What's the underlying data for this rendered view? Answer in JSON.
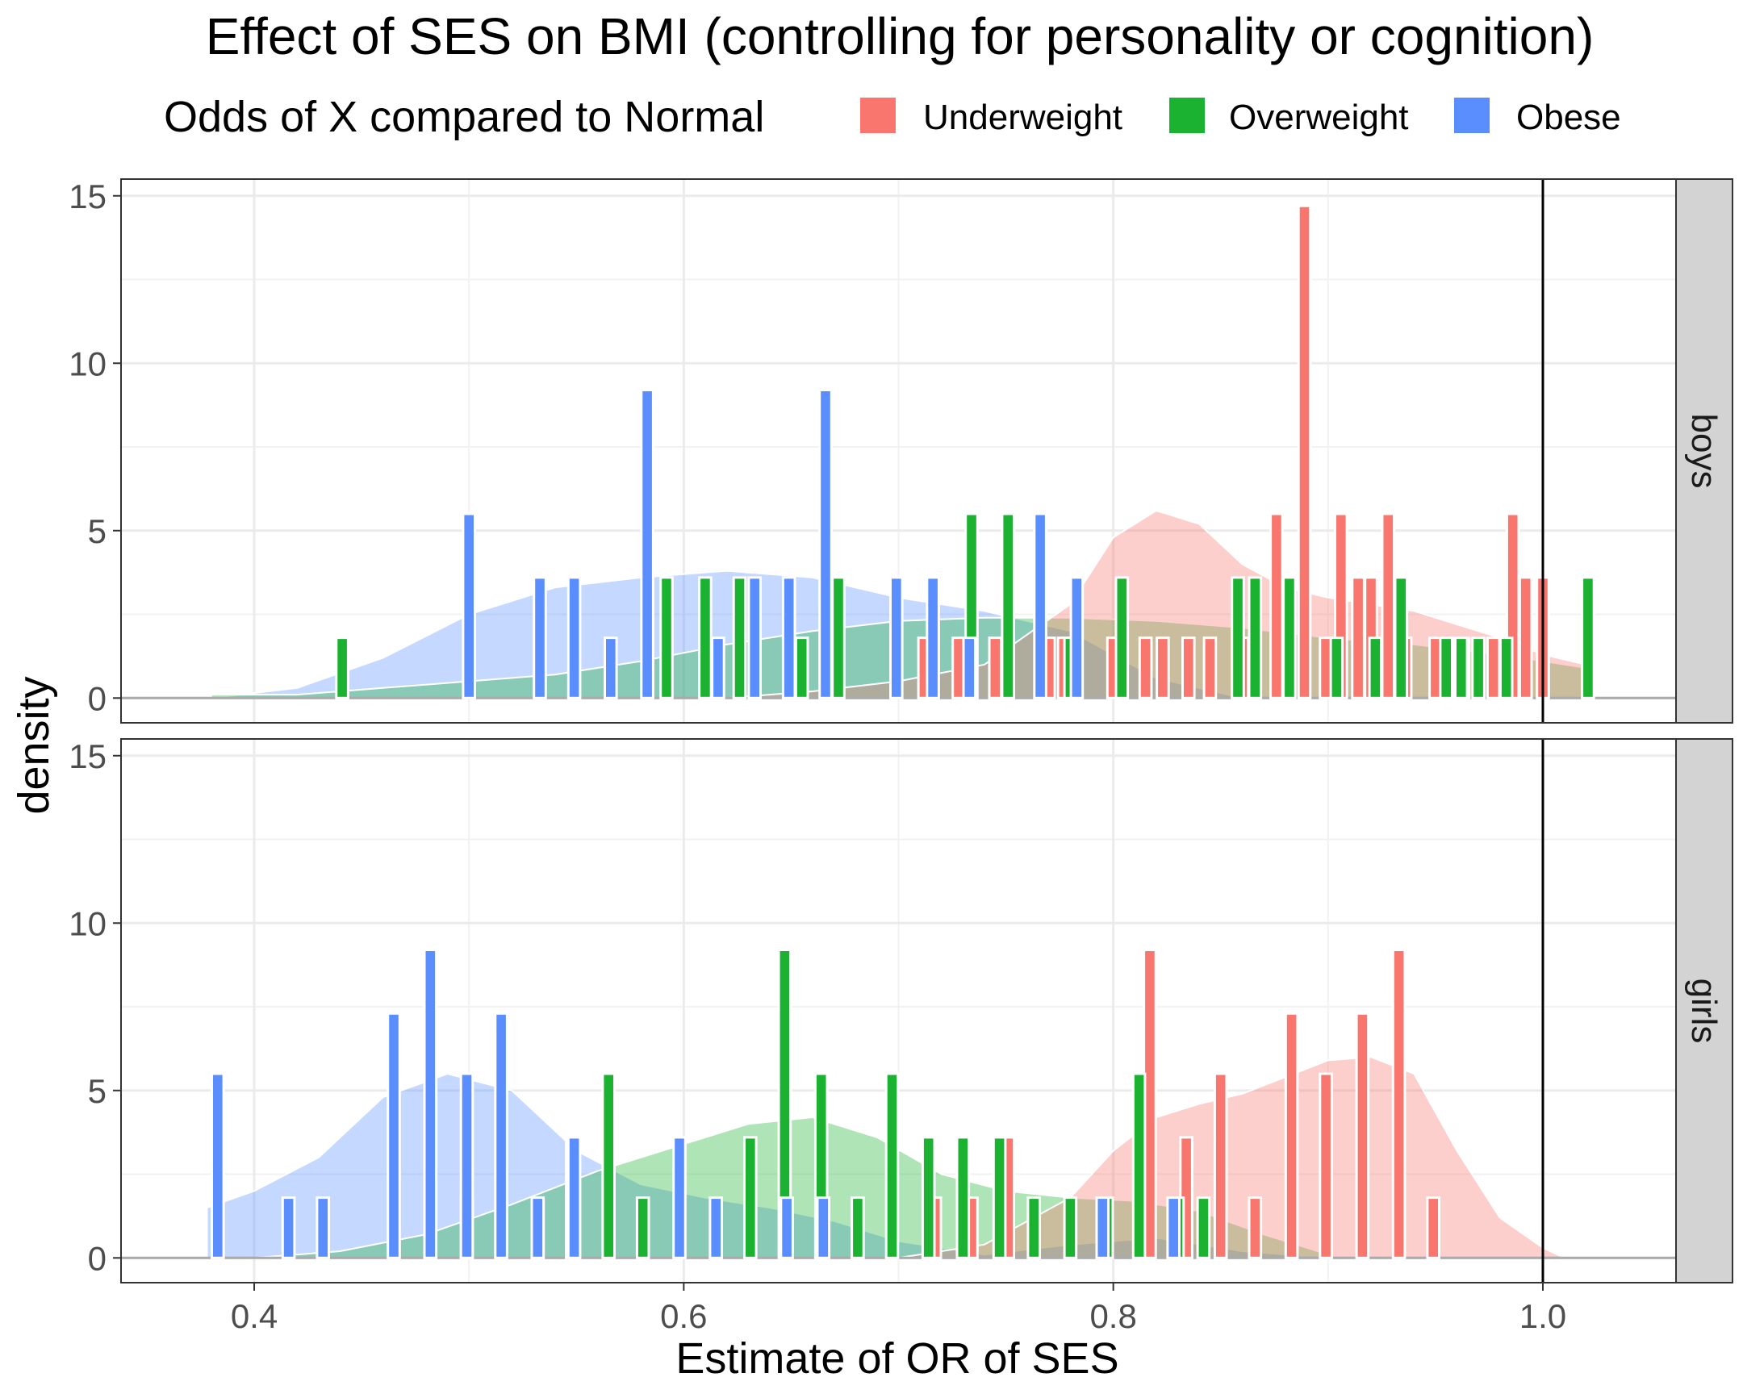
{
  "title": "Effect of SES on BMI (controlling for personality or cognition)",
  "legend": {
    "title": "Odds of X compared to Normal",
    "position": "top",
    "items": [
      {
        "label": "Underweight",
        "color": "#F8766D"
      },
      {
        "label": "Overweight",
        "color": "#1BB131"
      },
      {
        "label": "Obese",
        "color": "#5A8EFF"
      }
    ]
  },
  "chart_data": {
    "type": "bar",
    "xlabel": "Estimate of OR of SES",
    "ylabel": "density",
    "xlim": [
      0.338,
      1.062
    ],
    "ylim": [
      -0.74,
      15.5
    ],
    "x_ticks": [
      "0.4",
      "0.6",
      "0.8",
      "1.0"
    ],
    "x_tick_values": [
      0.4,
      0.6,
      0.8,
      1.0
    ],
    "y_ticks": [
      "0",
      "5",
      "10",
      "15"
    ],
    "y_tick_values": [
      0,
      5,
      10,
      15
    ],
    "reference_line_x": 1.0,
    "grid": true,
    "bin_width": 0.0055,
    "facets": [
      {
        "label": "boys",
        "series": [
          {
            "name": "Underweight",
            "x": [
              0.712,
              0.728,
              0.745,
              0.77,
              0.777,
              0.782,
              0.8,
              0.815,
              0.823,
              0.835,
              0.845,
              0.86,
              0.876,
              0.889,
              0.899,
              0.906,
              0.914,
              0.92,
              0.928,
              0.936,
              0.95,
              0.956,
              0.963,
              0.977,
              0.986,
              0.992,
              1.0
            ],
            "y": [
              1.8,
              1.8,
              1.8,
              1.8,
              1.8,
              1.8,
              1.8,
              1.8,
              1.8,
              1.8,
              1.8,
              1.8,
              5.5,
              14.7,
              1.8,
              5.5,
              3.6,
              3.6,
              5.5,
              1.8,
              1.8,
              1.8,
              1.8,
              1.8,
              5.5,
              3.6,
              3.6
            ]
          },
          {
            "name": "Overweight",
            "x": [
              0.441,
              0.592,
              0.61,
              0.626,
              0.655,
              0.672,
              0.734,
              0.751,
              0.78,
              0.804,
              0.858,
              0.866,
              0.882,
              0.904,
              0.922,
              0.934,
              0.955,
              0.962,
              0.97,
              0.983,
              1.021
            ],
            "y": [
              1.8,
              3.6,
              3.6,
              3.6,
              1.8,
              3.6,
              5.5,
              5.5,
              1.8,
              3.6,
              3.6,
              3.6,
              3.6,
              1.8,
              1.8,
              3.6,
              1.8,
              1.8,
              1.8,
              1.8,
              3.6
            ]
          },
          {
            "name": "Obese",
            "x": [
              0.5,
              0.533,
              0.549,
              0.566,
              0.583,
              0.616,
              0.633,
              0.649,
              0.666,
              0.699,
              0.716,
              0.733,
              0.766,
              0.783
            ],
            "y": [
              5.5,
              3.6,
              3.6,
              1.8,
              9.2,
              1.8,
              3.6,
              3.6,
              9.2,
              3.6,
              3.6,
              1.8,
              5.5,
              3.6
            ]
          }
        ],
        "densities": [
          {
            "name": "Obese",
            "x": [
              0.38,
              0.42,
              0.46,
              0.5,
              0.54,
              0.58,
              0.62,
              0.66,
              0.7,
              0.74,
              0.78,
              0.82,
              0.86
            ],
            "y": [
              0.0,
              0.3,
              1.2,
              2.5,
              3.3,
              3.6,
              3.8,
              3.6,
              3.0,
              2.6,
              2.0,
              0.6,
              0.0
            ]
          },
          {
            "name": "Overweight",
            "x": [
              0.38,
              0.42,
              0.46,
              0.5,
              0.54,
              0.58,
              0.62,
              0.66,
              0.7,
              0.74,
              0.78,
              0.82,
              0.86,
              0.9,
              0.94,
              0.98,
              1.02
            ],
            "y": [
              0.1,
              0.1,
              0.3,
              0.5,
              0.7,
              1.1,
              1.6,
              2.0,
              2.3,
              2.4,
              2.4,
              2.3,
              2.1,
              1.8,
              1.6,
              1.3,
              0.9
            ]
          },
          {
            "name": "Underweight",
            "x": [
              0.62,
              0.66,
              0.7,
              0.74,
              0.78,
              0.8,
              0.82,
              0.84,
              0.86,
              0.88,
              0.9,
              0.92,
              0.94,
              0.96,
              0.98,
              1.0,
              1.02
            ],
            "y": [
              0.0,
              0.2,
              0.5,
              1.0,
              2.8,
              4.8,
              5.6,
              5.2,
              4.0,
              3.3,
              3.0,
              2.8,
              2.6,
              2.2,
              1.8,
              1.3,
              1.0
            ]
          }
        ]
      },
      {
        "label": "girls",
        "series": [
          {
            "name": "Underweight",
            "x": [
              0.717,
              0.734,
              0.751,
              0.817,
              0.834,
              0.85,
              0.866,
              0.883,
              0.899,
              0.916,
              0.933,
              0.949
            ],
            "y": [
              1.8,
              1.8,
              3.6,
              9.2,
              3.6,
              5.5,
              1.8,
              7.3,
              5.5,
              7.3,
              9.2,
              1.8
            ]
          },
          {
            "name": "Overweight",
            "x": [
              0.499,
              0.532,
              0.548,
              0.565,
              0.581,
              0.615,
              0.631,
              0.647,
              0.664,
              0.681,
              0.697,
              0.714,
              0.73,
              0.747,
              0.763,
              0.78,
              0.797,
              0.812,
              0.83,
              0.842
            ],
            "y": [
              1.8,
              1.8,
              3.6,
              5.5,
              1.8,
              1.8,
              3.6,
              9.2,
              5.5,
              1.8,
              5.5,
              3.6,
              3.6,
              3.6,
              1.8,
              1.8,
              1.8,
              5.5,
              1.8,
              1.8
            ]
          },
          {
            "name": "Obese",
            "x": [
              0.383,
              0.416,
              0.432,
              0.465,
              0.482,
              0.499,
              0.515,
              0.532,
              0.549,
              0.598,
              0.615,
              0.648,
              0.665,
              0.795,
              0.828
            ],
            "y": [
              5.5,
              1.8,
              1.8,
              7.3,
              9.2,
              5.5,
              7.3,
              1.8,
              3.6,
              3.6,
              1.8,
              1.8,
              1.8,
              1.8,
              1.8
            ]
          }
        ],
        "densities": [
          {
            "name": "Obese",
            "x": [
              0.378,
              0.4,
              0.43,
              0.46,
              0.49,
              0.52,
              0.55,
              0.58,
              0.61,
              0.64,
              0.67,
              0.7,
              0.74,
              0.78,
              0.82,
              0.86,
              0.9
            ],
            "y": [
              1.5,
              2.0,
              3.0,
              4.8,
              5.5,
              5.0,
              3.2,
              2.2,
              1.8,
              1.5,
              1.1,
              0.5,
              0.1,
              0.4,
              0.6,
              0.2,
              0.0
            ]
          },
          {
            "name": "Overweight",
            "x": [
              0.4,
              0.44,
              0.48,
              0.52,
              0.56,
              0.6,
              0.63,
              0.66,
              0.69,
              0.72,
              0.75,
              0.78,
              0.81,
              0.84,
              0.87,
              0.9
            ],
            "y": [
              0.0,
              0.2,
              0.7,
              1.6,
              2.6,
              3.4,
              4.0,
              4.2,
              3.6,
              2.5,
              2.0,
              1.8,
              1.7,
              1.4,
              0.7,
              0.1
            ]
          },
          {
            "name": "Underweight",
            "x": [
              0.7,
              0.74,
              0.78,
              0.8,
              0.82,
              0.84,
              0.86,
              0.88,
              0.9,
              0.92,
              0.94,
              0.96,
              0.98,
              1.0,
              1.01
            ],
            "y": [
              0.0,
              0.4,
              1.8,
              3.2,
              4.2,
              4.6,
              4.9,
              5.4,
              5.9,
              6.0,
              5.5,
              3.2,
              1.2,
              0.3,
              0.0
            ]
          }
        ]
      }
    ]
  }
}
